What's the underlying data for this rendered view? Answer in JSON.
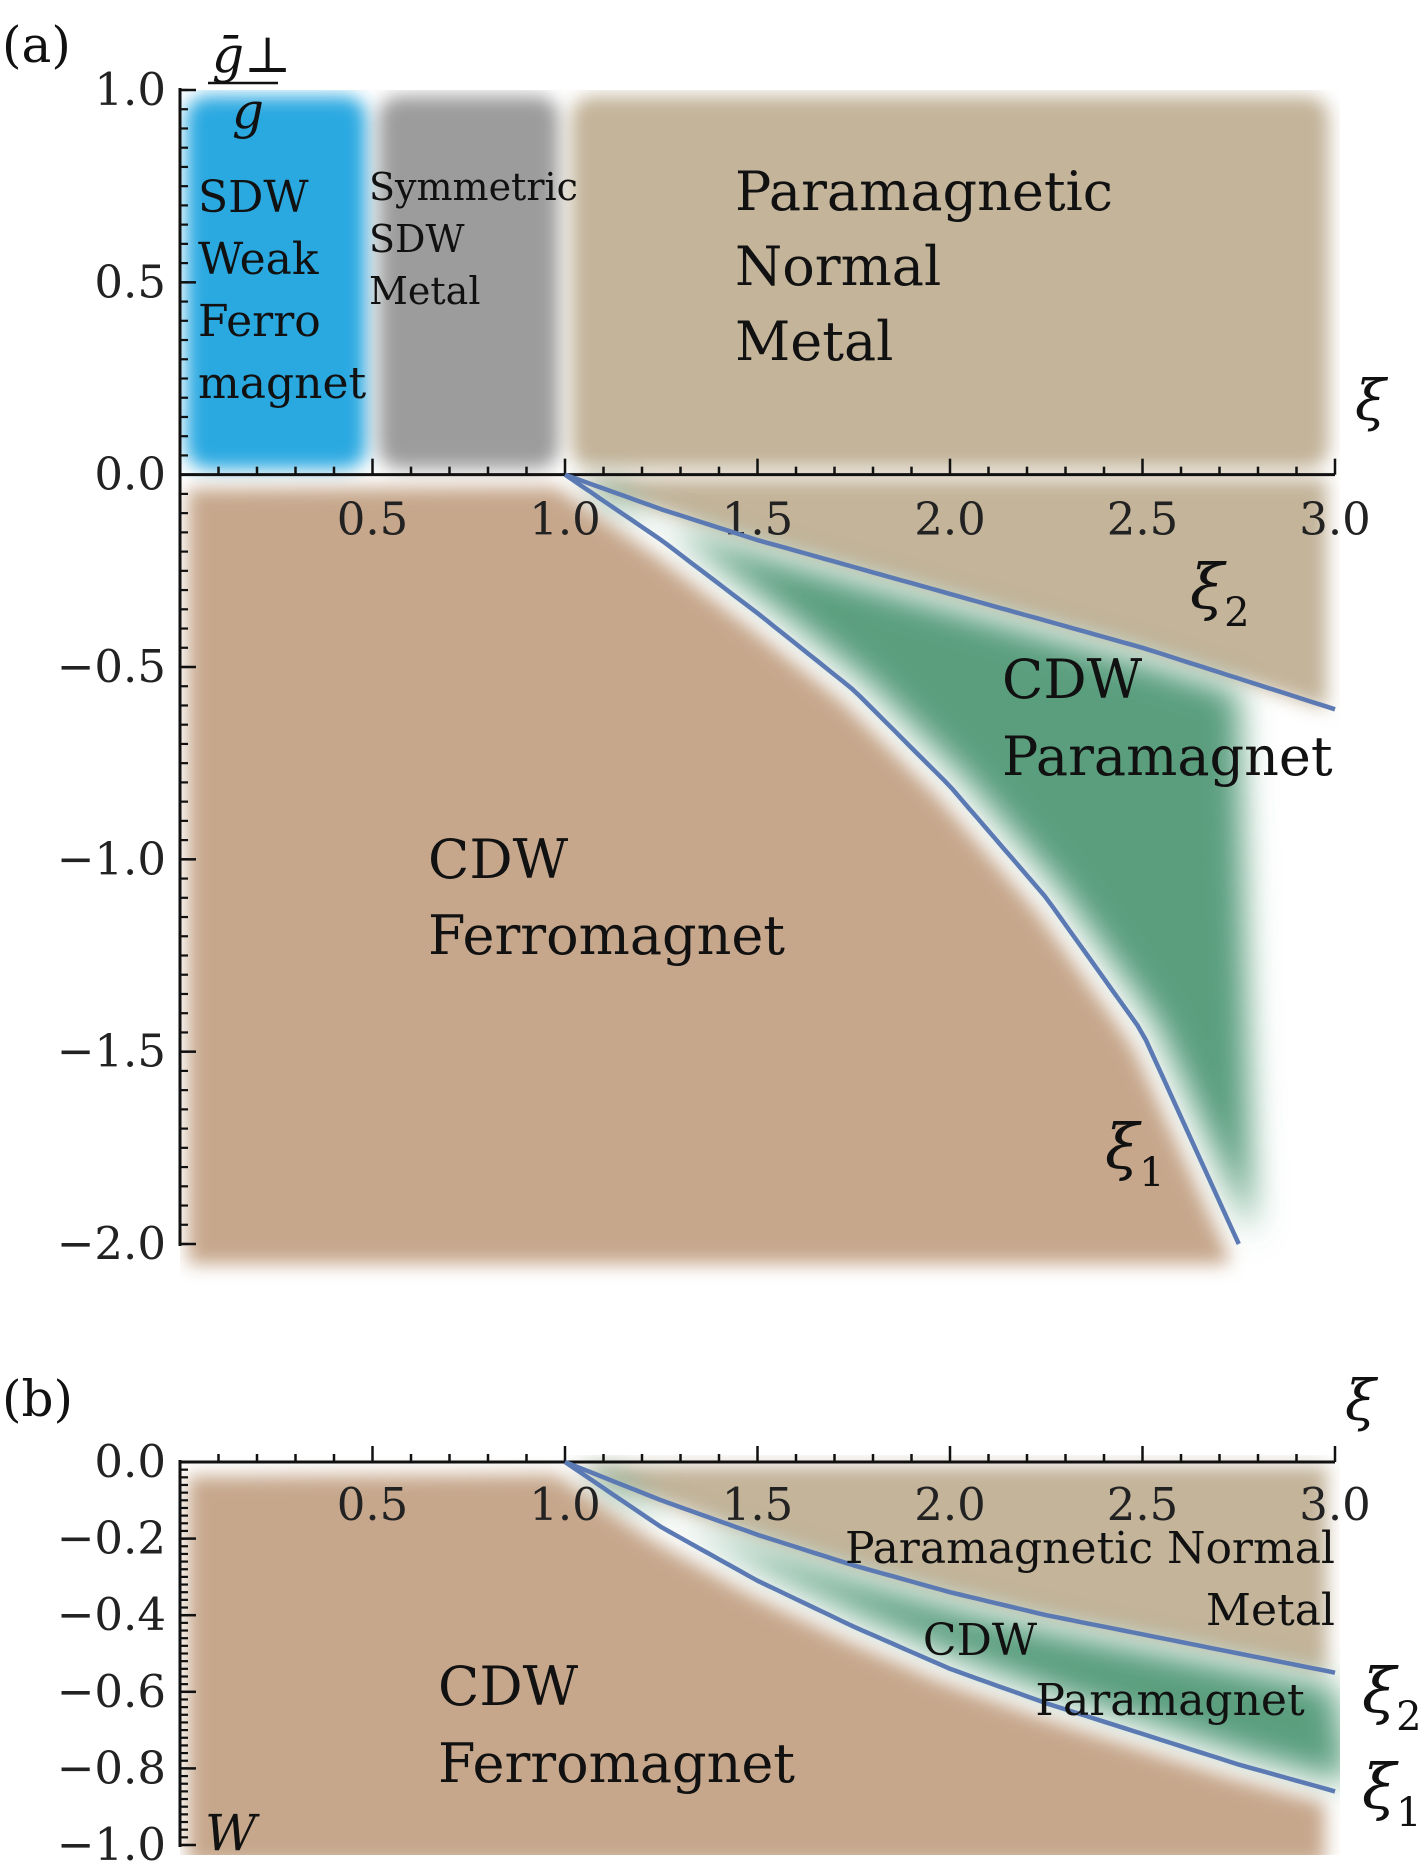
{
  "figure": {
    "panel_a_tag": "(a)",
    "panel_b_tag": "(b)"
  },
  "colors": {
    "sdw_weak_ferromagnet": "#29a9e1",
    "symmetric_sdw_metal": "#9c9c9c",
    "paramagnetic_normal_metal": "#c3b49a",
    "cdw_ferromagnet": "#c6a78c",
    "cdw_paramagnet": "#5a9e7e",
    "boundary": "#5b79b3"
  },
  "chart_data": [
    {
      "panel": "(a)",
      "type": "area",
      "xlabel": "ξ",
      "ylabel": "ḡ⊥ / g",
      "ylabel_num": "ḡ⊥",
      "ylabel_den": "g",
      "xlim": [
        0,
        3.0
      ],
      "ylim": [
        -2.0,
        1.0
      ],
      "xticks": [
        "0.5",
        "1.0",
        "1.5",
        "2.0",
        "2.5",
        "3.0"
      ],
      "yticks": [
        "1.0",
        "0.5",
        "0.0",
        "−0.5",
        "−1.0",
        "−1.5",
        "−2.0"
      ],
      "regions": [
        {
          "lines": [
            "SDW",
            "Weak",
            "Ferro",
            "magnet"
          ],
          "x": [
            0,
            0.5
          ],
          "y": [
            0,
            1.0
          ]
        },
        {
          "lines": [
            "Symmetric",
            "SDW",
            "Metal"
          ],
          "x": [
            0.5,
            1.0
          ],
          "y": [
            0,
            1.0
          ]
        },
        {
          "lines": [
            "Paramagnetic",
            "Normal",
            "Metal"
          ],
          "x": [
            1.0,
            3.0
          ],
          "y": [
            0,
            1.0
          ]
        },
        {
          "lines": [
            "CDW",
            "Ferromagnet"
          ],
          "below": "ξ1"
        },
        {
          "lines": [
            "CDW",
            "Paramagnet"
          ],
          "between": [
            "ξ1",
            "ξ2"
          ]
        }
      ],
      "series": [
        {
          "name": "ξ1",
          "x": [
            1.0,
            1.25,
            1.5,
            1.75,
            2.0,
            2.25,
            2.5,
            2.75
          ],
          "y": [
            0.0,
            -0.17,
            -0.36,
            -0.56,
            -0.81,
            -1.1,
            -1.45,
            -2.0
          ]
        },
        {
          "name": "ξ2",
          "x": [
            1.0,
            1.25,
            1.5,
            1.75,
            2.0,
            2.25,
            2.5,
            2.75,
            3.0
          ],
          "y": [
            0.0,
            -0.09,
            -0.17,
            -0.24,
            -0.31,
            -0.38,
            -0.45,
            -0.53,
            -0.61
          ]
        }
      ]
    },
    {
      "panel": "(b)",
      "type": "area",
      "xlabel": "ξ",
      "ylabel": "W",
      "xlim": [
        0,
        3.0
      ],
      "ylim": [
        -1.0,
        0.0
      ],
      "xticks": [
        "0.5",
        "1.0",
        "1.5",
        "2.0",
        "2.5",
        "3.0"
      ],
      "yticks": [
        "0.0",
        "−0.2",
        "−0.4",
        "−0.6",
        "−0.8",
        "−1.0"
      ],
      "regions": [
        {
          "lines": [
            "CDW",
            "Ferromagnet"
          ],
          "below": "ξ1"
        },
        {
          "lines": [
            "CDW",
            "Paramagnet"
          ],
          "between": [
            "ξ1",
            "ξ2"
          ]
        },
        {
          "lines": [
            "Paramagnetic Normal",
            "Metal"
          ],
          "above": "ξ2"
        }
      ],
      "series": [
        {
          "name": "ξ1",
          "x": [
            1.0,
            1.25,
            1.5,
            1.75,
            2.0,
            2.25,
            2.5,
            2.75,
            3.0
          ],
          "y": [
            0.0,
            -0.17,
            -0.31,
            -0.43,
            -0.54,
            -0.63,
            -0.71,
            -0.79,
            -0.86
          ]
        },
        {
          "name": "ξ2",
          "x": [
            1.0,
            1.25,
            1.5,
            1.75,
            2.0,
            2.25,
            2.5,
            2.75,
            3.0
          ],
          "y": [
            0.0,
            -0.1,
            -0.19,
            -0.27,
            -0.34,
            -0.4,
            -0.45,
            -0.5,
            -0.55
          ]
        }
      ]
    }
  ]
}
